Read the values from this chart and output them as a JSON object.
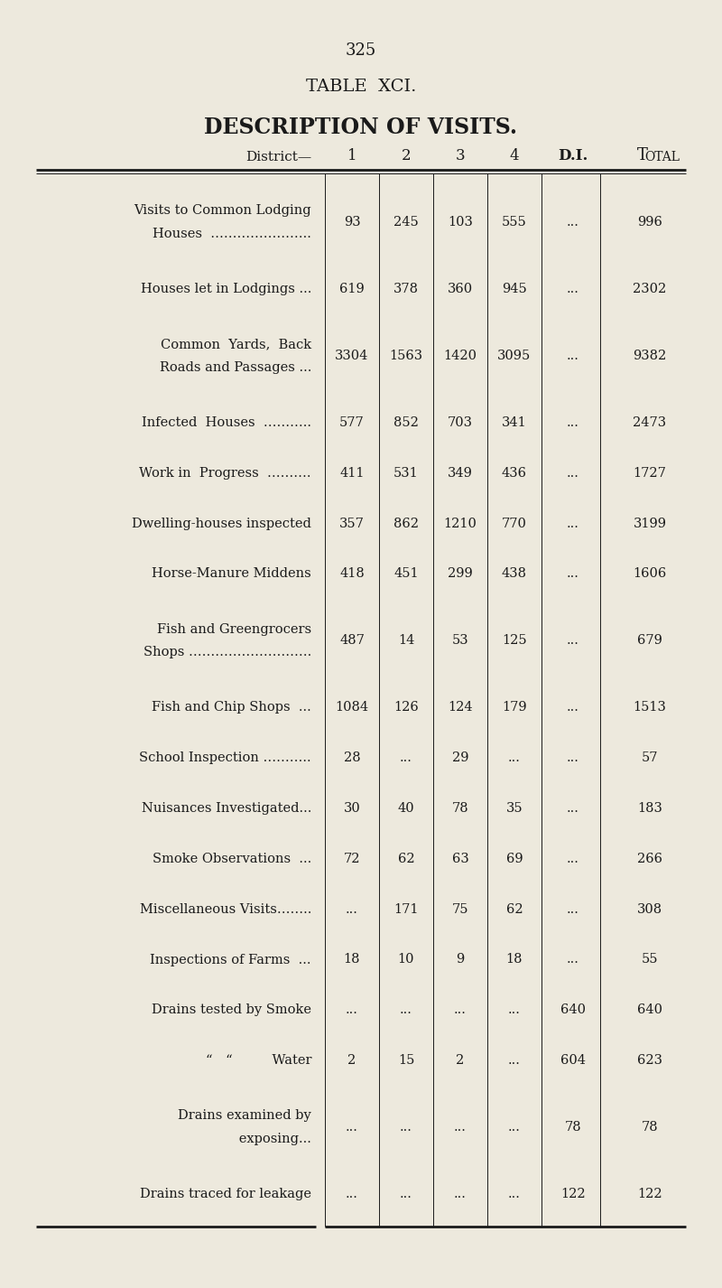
{
  "page_number": "325",
  "table_title": "TABLE  XCI.",
  "table_subtitle": "DESCRIPTION OF VISITS.",
  "bg_color": "#ede9dd",
  "text_color": "#1a1a1a",
  "rows": [
    {
      "label_lines": [
        "Visits to Common Lodging",
        "Houses  ………………….."
      ],
      "values": [
        "93",
        "245",
        "103",
        "555",
        "...",
        "996"
      ],
      "two_line": true
    },
    {
      "label_lines": [
        "Houses let in Lodgings ..."
      ],
      "values": [
        "619",
        "378",
        "360",
        "945",
        "...",
        "2302"
      ],
      "two_line": false
    },
    {
      "label_lines": [
        "Common  Yards,  Back",
        "Roads and Passages ..."
      ],
      "values": [
        "3304",
        "1563",
        "1420",
        "3095",
        "...",
        "9382"
      ],
      "two_line": true
    },
    {
      "label_lines": [
        "Infected  Houses  ……….."
      ],
      "values": [
        "577",
        "852",
        "703",
        "341",
        "...",
        "2473"
      ],
      "two_line": false
    },
    {
      "label_lines": [
        "Work in  Progress  ………."
      ],
      "values": [
        "411",
        "531",
        "349",
        "436",
        "...",
        "1727"
      ],
      "two_line": false
    },
    {
      "label_lines": [
        "Dwelling-houses inspected"
      ],
      "values": [
        "357",
        "862",
        "1210",
        "770",
        "...",
        "3199"
      ],
      "two_line": false
    },
    {
      "label_lines": [
        "Horse-Manure Middens"
      ],
      "values": [
        "418",
        "451",
        "299",
        "438",
        "...",
        "1606"
      ],
      "two_line": false
    },
    {
      "label_lines": [
        "Fish and Greengrocers",
        "Shops ………………………."
      ],
      "values": [
        "487",
        "14",
        "53",
        "125",
        "...",
        "679"
      ],
      "two_line": true
    },
    {
      "label_lines": [
        "Fish and Chip Shops  ..."
      ],
      "values": [
        "1084",
        "126",
        "124",
        "179",
        "...",
        "1513"
      ],
      "two_line": false
    },
    {
      "label_lines": [
        "School Inspection ……….."
      ],
      "values": [
        "28",
        "...",
        "29",
        "...",
        "...",
        "57"
      ],
      "two_line": false
    },
    {
      "label_lines": [
        "Nuisances Investigated..."
      ],
      "values": [
        "30",
        "40",
        "78",
        "35",
        "...",
        "183"
      ],
      "two_line": false
    },
    {
      "label_lines": [
        "Smoke Observations  ..."
      ],
      "values": [
        "72",
        "62",
        "63",
        "69",
        "...",
        "266"
      ],
      "two_line": false
    },
    {
      "label_lines": [
        "Miscellaneous Visits…….."
      ],
      "values": [
        "...",
        "171",
        "75",
        "62",
        "...",
        "308"
      ],
      "two_line": false
    },
    {
      "label_lines": [
        "Inspections of Farms  ..."
      ],
      "values": [
        "18",
        "10",
        "9",
        "18",
        "...",
        "55"
      ],
      "two_line": false
    },
    {
      "label_lines": [
        "Drains tested by Smoke"
      ],
      "values": [
        "...",
        "...",
        "...",
        "...",
        "640",
        "640"
      ],
      "two_line": false
    },
    {
      "label_lines": [
        "“ “   Water"
      ],
      "values": [
        "2",
        "15",
        "2",
        "...",
        "604",
        "623"
      ],
      "two_line": false
    },
    {
      "label_lines": [
        "Drains examined by",
        "      exposing..."
      ],
      "values": [
        "...",
        "...",
        "...",
        "...",
        "78",
        "78"
      ],
      "two_line": true
    },
    {
      "label_lines": [
        "Drains traced for leakage"
      ],
      "values": [
        "...",
        "...",
        "...",
        "...",
        "122",
        "122"
      ],
      "two_line": false
    }
  ]
}
